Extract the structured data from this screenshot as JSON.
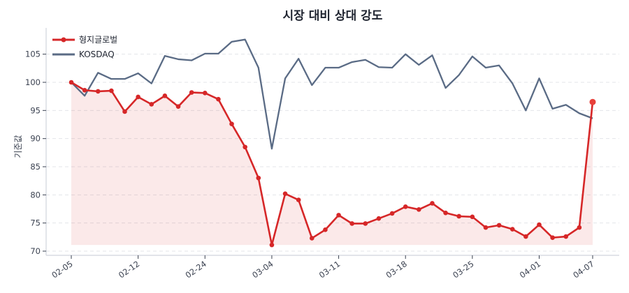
{
  "chart_data": {
    "type": "line",
    "title": "시장 대비 상대 강도",
    "xlabel": "",
    "ylabel": "기준값",
    "ylim": [
      69.5,
      109.5
    ],
    "yticks": [
      70,
      75,
      80,
      85,
      90,
      95,
      100,
      105
    ],
    "xtick_labels": [
      "02-05",
      "02-12",
      "02-24",
      "03-04",
      "03-11",
      "03-18",
      "03-25",
      "04-01",
      "04-07"
    ],
    "xtick_indices": [
      0,
      5,
      10,
      15,
      20,
      25,
      30,
      35,
      39
    ],
    "grid": true,
    "legend_position": "upper left",
    "baseline_fill": 71.1,
    "series": [
      {
        "name": "형지글로벌",
        "color": "#d62728",
        "marker": "circle",
        "values": [
          100.0,
          98.6,
          98.4,
          98.5,
          94.8,
          97.4,
          96.1,
          97.6,
          95.7,
          98.2,
          98.1,
          97.0,
          92.6,
          88.5,
          83.0,
          71.1,
          80.2,
          79.1,
          72.3,
          73.8,
          76.4,
          74.9,
          74.9,
          75.8,
          76.7,
          77.9,
          77.4,
          78.5,
          76.8,
          76.2,
          76.1,
          74.2,
          74.6,
          73.9,
          72.6,
          74.7,
          72.4,
          72.6,
          74.2,
          96.5
        ]
      },
      {
        "name": "KOSDAQ",
        "color": "#5a6b85",
        "marker": "none",
        "values": [
          100.0,
          97.6,
          101.7,
          100.6,
          100.6,
          101.6,
          99.8,
          104.7,
          104.1,
          103.9,
          105.1,
          105.1,
          107.2,
          107.6,
          102.6,
          88.2,
          100.7,
          104.2,
          99.5,
          102.6,
          102.6,
          103.6,
          104.0,
          102.7,
          102.6,
          105.0,
          103.1,
          104.8,
          99.0,
          101.3,
          104.6,
          102.6,
          103.0,
          99.8,
          95.0,
          100.7,
          95.3,
          96.0,
          94.5,
          93.6
        ]
      }
    ]
  }
}
